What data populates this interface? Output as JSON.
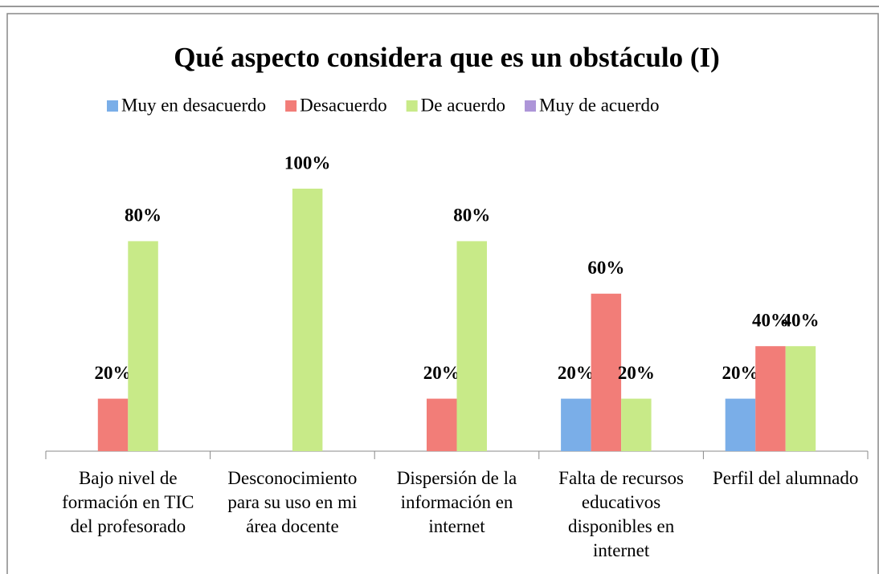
{
  "chart_data": {
    "type": "bar",
    "title": "Qué aspecto considera que es un obstáculo (I)",
    "categories": [
      "Bajo nivel de formación en TIC del profesorado",
      "Desconocimiento para su uso en mi área docente",
      "Dispersión de la información en internet",
      "Falta de recursos educativos disponibles en internet",
      "Perfil del alumnado"
    ],
    "series": [
      {
        "name": "Muy en desacuerdo",
        "color": "#7aaee8",
        "values": [
          0,
          0,
          0,
          20,
          20
        ],
        "value_labels": [
          null,
          null,
          null,
          "20%",
          "20%"
        ]
      },
      {
        "name": "Desacuerdo",
        "color": "#f27d78",
        "values": [
          20,
          0,
          20,
          60,
          40
        ],
        "value_labels": [
          "20%",
          null,
          "20%",
          "60%",
          "40%"
        ]
      },
      {
        "name": "De acuerdo",
        "color": "#c8ea88",
        "values": [
          80,
          100,
          80,
          20,
          40
        ],
        "value_labels": [
          "80%",
          "100%",
          "80%",
          "20%",
          "40%"
        ]
      },
      {
        "name": "Muy de acuerdo",
        "color": "#ad95d8",
        "values": [
          0,
          0,
          0,
          0,
          0
        ],
        "value_labels": [
          null,
          null,
          null,
          null,
          null
        ]
      }
    ],
    "ylim": [
      0,
      100
    ],
    "legend": "top"
  }
}
